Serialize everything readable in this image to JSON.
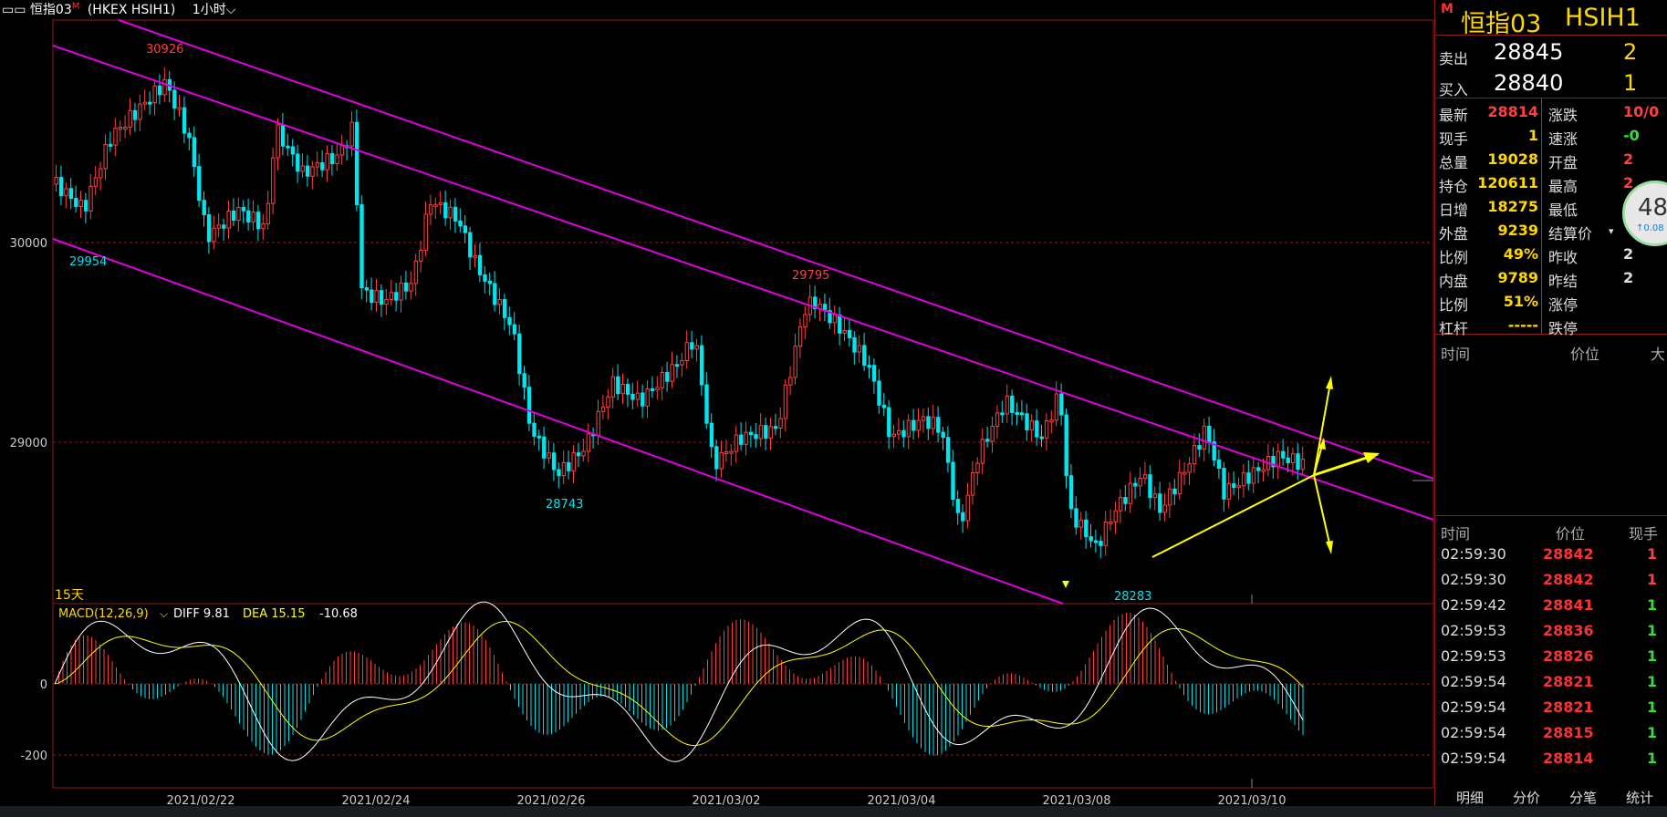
{
  "title": {
    "window_glyph": "▭▭",
    "name": "恒指03",
    "marker": "M",
    "code": "(HKEX HSIH1)",
    "period": "1小时"
  },
  "colors": {
    "bg": "#000000",
    "up": "#ff4040",
    "down": "#00e5ee",
    "channel": "#e000e0",
    "trend": "#ffff00",
    "grid": "#8b1a1a"
  },
  "main_chart": {
    "y_ticks": [
      "30000",
      "29000"
    ],
    "annotations": [
      {
        "text": "30926",
        "color": "up"
      },
      {
        "text": "29954",
        "color": "down"
      },
      {
        "text": "29795",
        "color": "up"
      },
      {
        "text": "28743",
        "color": "down"
      },
      {
        "text": "28283",
        "color": "down"
      }
    ],
    "period_label": "15天"
  },
  "macd": {
    "label": "MACD(12,26,9)",
    "diff": "DIFF 9.81",
    "dea": "DEA 15.15",
    "macd": "-10.68",
    "y_ticks": [
      "0",
      "-200"
    ]
  },
  "x_labels": [
    "2021/02/22",
    "2021/02/24",
    "2021/02/26",
    "2021/03/02",
    "2021/03/04",
    "2021/03/08",
    "2021/03/10"
  ],
  "quote": {
    "marker": "M",
    "name": "恒指03",
    "code": "HSIH1",
    "ask_label": "卖出",
    "ask_price": "28845",
    "ask_qty": "2",
    "bid_label": "买入",
    "bid_price": "28840",
    "bid_qty": "1",
    "stats": [
      {
        "l1": "最新",
        "v1": "28814",
        "c1": "up",
        "l2": "涨跌",
        "v2": "10/0",
        "c2": "up"
      },
      {
        "l1": "现手",
        "v1": "1",
        "c1": "yellow",
        "l2": "速涨",
        "v2": "-0",
        "c2": "green"
      },
      {
        "l1": "总量",
        "v1": "19028",
        "c1": "yellow",
        "l2": "开盘",
        "v2": "2",
        "c2": "up"
      },
      {
        "l1": "持仓",
        "v1": "120611",
        "c1": "yellow",
        "l2": "最高",
        "v2": "2",
        "c2": "up"
      },
      {
        "l1": "日增",
        "v1": "18275",
        "c1": "yellow",
        "l2": "最低",
        "v2": "2",
        "c2": "green"
      },
      {
        "l1": "外盘",
        "v1": "9239",
        "c1": "yellow",
        "l2": "结算价",
        "v2": "",
        "c2": "white"
      },
      {
        "l1": "比例",
        "v1": "49%",
        "c1": "yellow",
        "l2": "昨收",
        "v2": "2",
        "c2": "white"
      },
      {
        "l1": "内盘",
        "v1": "9789",
        "c1": "yellow",
        "l2": "昨结",
        "v2": "2",
        "c2": "white"
      },
      {
        "l1": "比例",
        "v1": "51%",
        "c1": "yellow",
        "l2": "涨停",
        "v2": "",
        "c2": "white"
      },
      {
        "l1": "杠杆",
        "v1": "-----",
        "c1": "yellow",
        "l2": "跌停",
        "v2": "",
        "c2": "white"
      }
    ],
    "gauge_main": "48",
    "gauge_sub": "↑0.08",
    "hdr1": {
      "time": "时间",
      "price": "价位",
      "vol": "大"
    },
    "hdr2": {
      "time": "时间",
      "price": "价位",
      "vol": "现手"
    },
    "trades": [
      {
        "time": "02:59:30",
        "price": "28842",
        "vol": "1",
        "vc": "up"
      },
      {
        "time": "02:59:30",
        "price": "28842",
        "vol": "1",
        "vc": "up"
      },
      {
        "time": "02:59:42",
        "price": "28841",
        "vol": "1",
        "vc": "green"
      },
      {
        "time": "02:59:53",
        "price": "28836",
        "vol": "1",
        "vc": "green"
      },
      {
        "time": "02:59:53",
        "price": "28826",
        "vol": "1",
        "vc": "green"
      },
      {
        "time": "02:59:54",
        "price": "28821",
        "vol": "1",
        "vc": "green"
      },
      {
        "time": "02:59:54",
        "price": "28821",
        "vol": "1",
        "vc": "green"
      },
      {
        "time": "02:59:54",
        "price": "28815",
        "vol": "1",
        "vc": "green"
      },
      {
        "time": "02:59:54",
        "price": "28814",
        "vol": "1",
        "vc": "green"
      }
    ],
    "tabs": [
      "明细",
      "分价",
      "分笔",
      "统计"
    ]
  }
}
